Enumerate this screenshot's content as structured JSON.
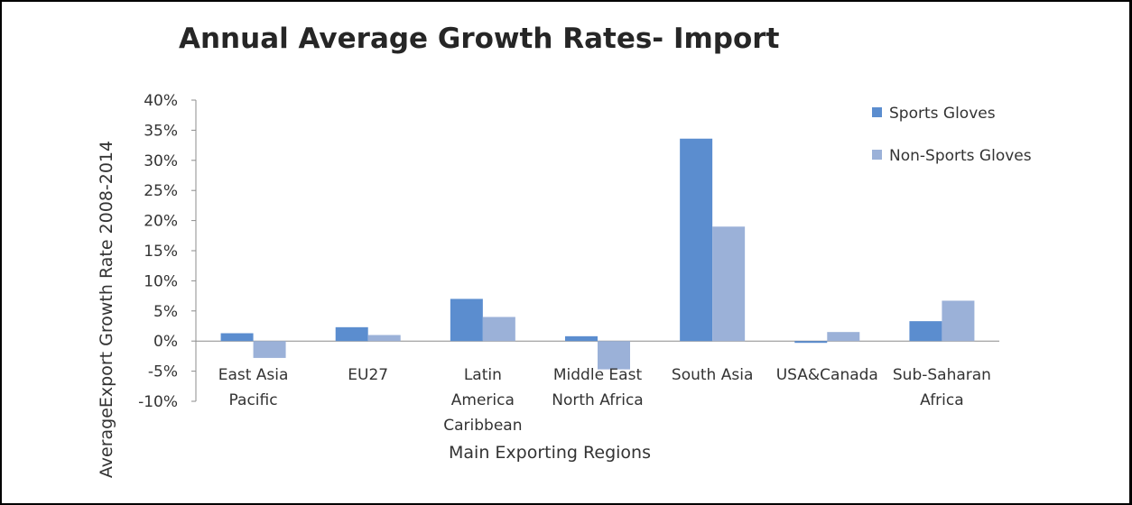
{
  "chart_data": {
    "type": "bar",
    "title": "Annual Average Growth Rates- Import",
    "xlabel": "Main Exporting Regions",
    "ylabel": "AverageExport Growth Rate 2008-2014",
    "categories": [
      [
        "East Asia",
        "Pacific"
      ],
      [
        "EU27"
      ],
      [
        "Latin",
        "America",
        "Caribbean"
      ],
      [
        "Middle East",
        "North Africa"
      ],
      [
        "South Asia"
      ],
      [
        "USA&Canada"
      ],
      [
        "Sub-Saharan",
        "Africa"
      ]
    ],
    "series": [
      {
        "name": "Sports Gloves",
        "color": "#5b8dcf",
        "values": [
          1.3,
          2.3,
          7.0,
          0.8,
          33.6,
          -0.3,
          3.3
        ]
      },
      {
        "name": "Non-Sports Gloves",
        "color": "#9bb1d8",
        "values": [
          -2.8,
          1.0,
          4.0,
          -4.7,
          19.0,
          1.5,
          6.7
        ]
      }
    ],
    "ylim": [
      -10,
      40
    ],
    "yticks": [
      "40%",
      "35%",
      "30%",
      "25%",
      "20%",
      "15%",
      "10%",
      "5%",
      "0%",
      "-5%",
      "-10%"
    ],
    "grid": false,
    "legend_position": "top-right"
  }
}
